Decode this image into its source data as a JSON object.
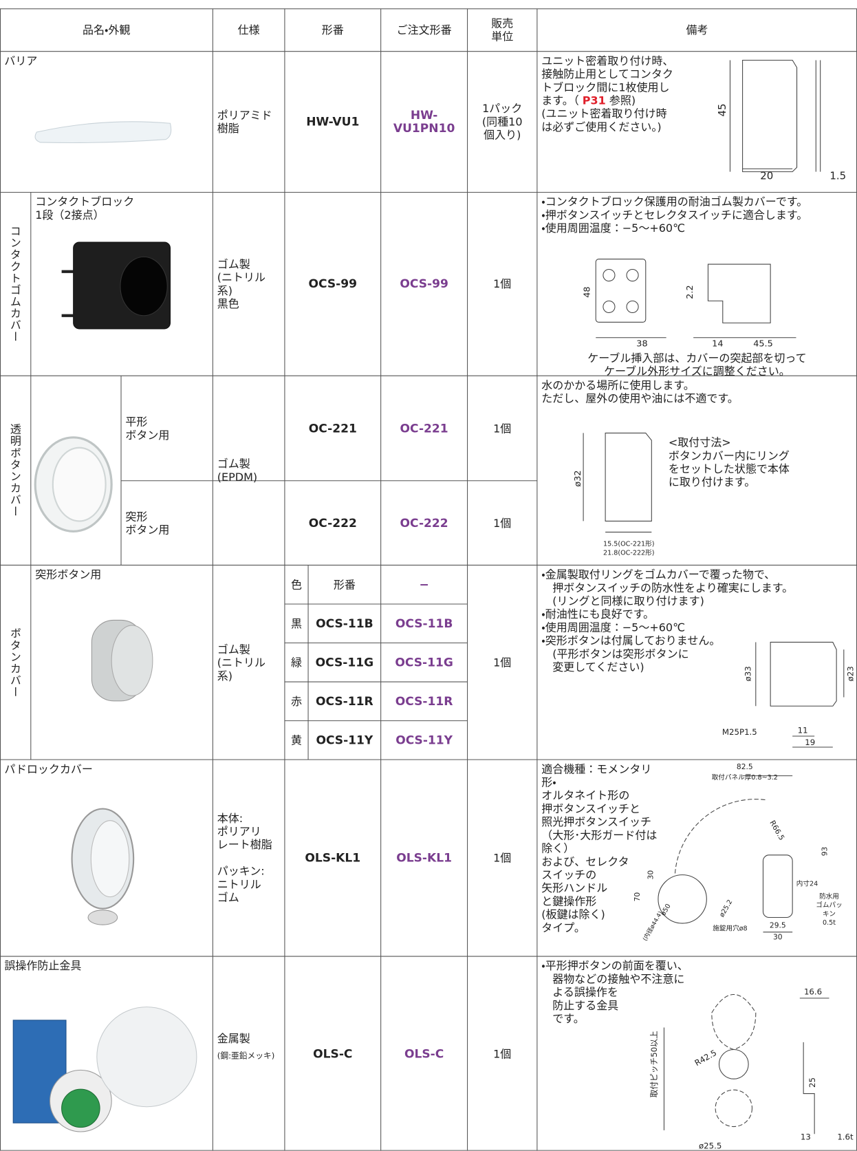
{
  "header": {
    "columns": [
      "品名・外観",
      "仕様",
      "形番",
      "ご注文形番",
      "販売\n単位",
      "備考"
    ]
  },
  "rows": [
    {
      "name": "バリア",
      "spec": "ポリアミド\n樹脂",
      "model": "HW-VU1",
      "order": "HW-VU1PN10",
      "unit": "1パック\n(同種10\n個入り)",
      "remarks": [
        "ユニット密着取り付け時、\n接触防止用としてコンタク\nトブロック間に1枚使用し\nます。（ ",
        "P31",
        " 参照)\n(ユニット密着取り付け時\nは必ずご使用ください。)"
      ],
      "dims": [
        "45",
        "20",
        "1.5"
      ]
    },
    {
      "group": "コンタクトゴムカバー",
      "name": "コンタクトブロック\n1段（2接点）",
      "spec": "ゴム製\n(ニトリル系)\n黒色",
      "model": "OCS-99",
      "order": "OCS-99",
      "unit": "1個",
      "remarks": "・コンタクトブロック保護用の耐油ゴム製カバーです。\n・押ボタンスイッチとセレクタスイッチに適合します。\n・使用周囲温度：−5〜+60℃",
      "note": "ケーブル挿入部は、カバーの突起部を切って\nケーブル外形サイズに調整ください。",
      "dims": [
        "48",
        "2.2",
        "38",
        "14",
        "45.5"
      ]
    },
    {
      "group": "透明ボタンカバー",
      "spec": "ゴム製\n(EPDM)",
      "variants": [
        {
          "name": "平形\nボタン用",
          "model": "OC-221",
          "order": "OC-221",
          "unit": "1個"
        },
        {
          "name": "突形\nボタン用",
          "model": "OC-222",
          "order": "OC-222",
          "unit": "1個"
        }
      ],
      "remarks": "水のかかる場所に使用します。\nただし、屋外の使用や油には不適です。",
      "note": "<取付寸法>\nボタンカバー内にリング\nをセットした状態で本体\nに取り付けます。",
      "dims": [
        "ø32",
        "15.5(OC-221形)\n21.8(OC-222形)"
      ]
    },
    {
      "group": "ボタンカバー",
      "name": "突形ボタン用",
      "spec": "ゴム製\n(ニトリル系)",
      "subheader": [
        "色",
        "形番",
        "−"
      ],
      "variants": [
        {
          "color": "黒",
          "model": "OCS-11B",
          "order": "OCS-11B"
        },
        {
          "color": "緑",
          "model": "OCS-11G",
          "order": "OCS-11G"
        },
        {
          "color": "赤",
          "model": "OCS-11R",
          "order": "OCS-11R"
        },
        {
          "color": "黄",
          "model": "OCS-11Y",
          "order": "OCS-11Y"
        }
      ],
      "unit": "1個",
      "remarks": "・金属製取付リングをゴムカバーで覆った物で、\n　押ボタンスイッチの防水性をより確実にします。\n　(リングと同様に取り付けます)\n・耐油性にも良好です。\n・使用周囲温度：−5〜+60℃\n・突形ボタンは付属しておりません。\n　(平形ボタンは突形ボタンに\n　変更してください)",
      "dims": [
        "ø33",
        "ø23",
        "M25P1.5",
        "11",
        "19"
      ]
    },
    {
      "name": "パドロックカバー",
      "spec": "本体:\nポリアリ\nレート樹脂\n\nパッキン:\nニトリル\nゴム",
      "model": "OLS-KL1",
      "order": "OLS-KL1",
      "unit": "1個",
      "remarks": "適合機種：モメンタリ形・\nオルタネイト形の\n押ボタンスイッチと\n照光押ボタンスイッチ\n（大形･大形ガード付は除く）\nおよび、セレクタ\nスイッチの\n矢形ハンドル\nと鍵操作形\n(板鍵は除く)\nタイプ。",
      "dims": [
        "82.5",
        "取付パネル厚0.8~3.2",
        "R66.5",
        "93",
        "30",
        "70",
        "ø50",
        "(内径ø44.4)",
        "ø25.2",
        "内寸24",
        "防水用\nゴムパッキン\n0.5t",
        "29.5",
        "30",
        "施錠用穴ø8"
      ]
    },
    {
      "name": "誤操作防止金具",
      "spec": "金属製",
      "spec_note": "(鋼:亜鉛メッキ)",
      "model": "OLS-C",
      "order": "OLS-C",
      "unit": "1個",
      "remarks": "・平形押ボタンの前面を覆い、\n　器物などの接触や不注意に\n　よる誤操作を\n　防止する金具\n　です。",
      "dims": [
        "取付ピッチ50以上",
        "R42.5",
        "ø25.5",
        "16.6",
        "25",
        "13",
        "1.6t"
      ]
    }
  ]
}
